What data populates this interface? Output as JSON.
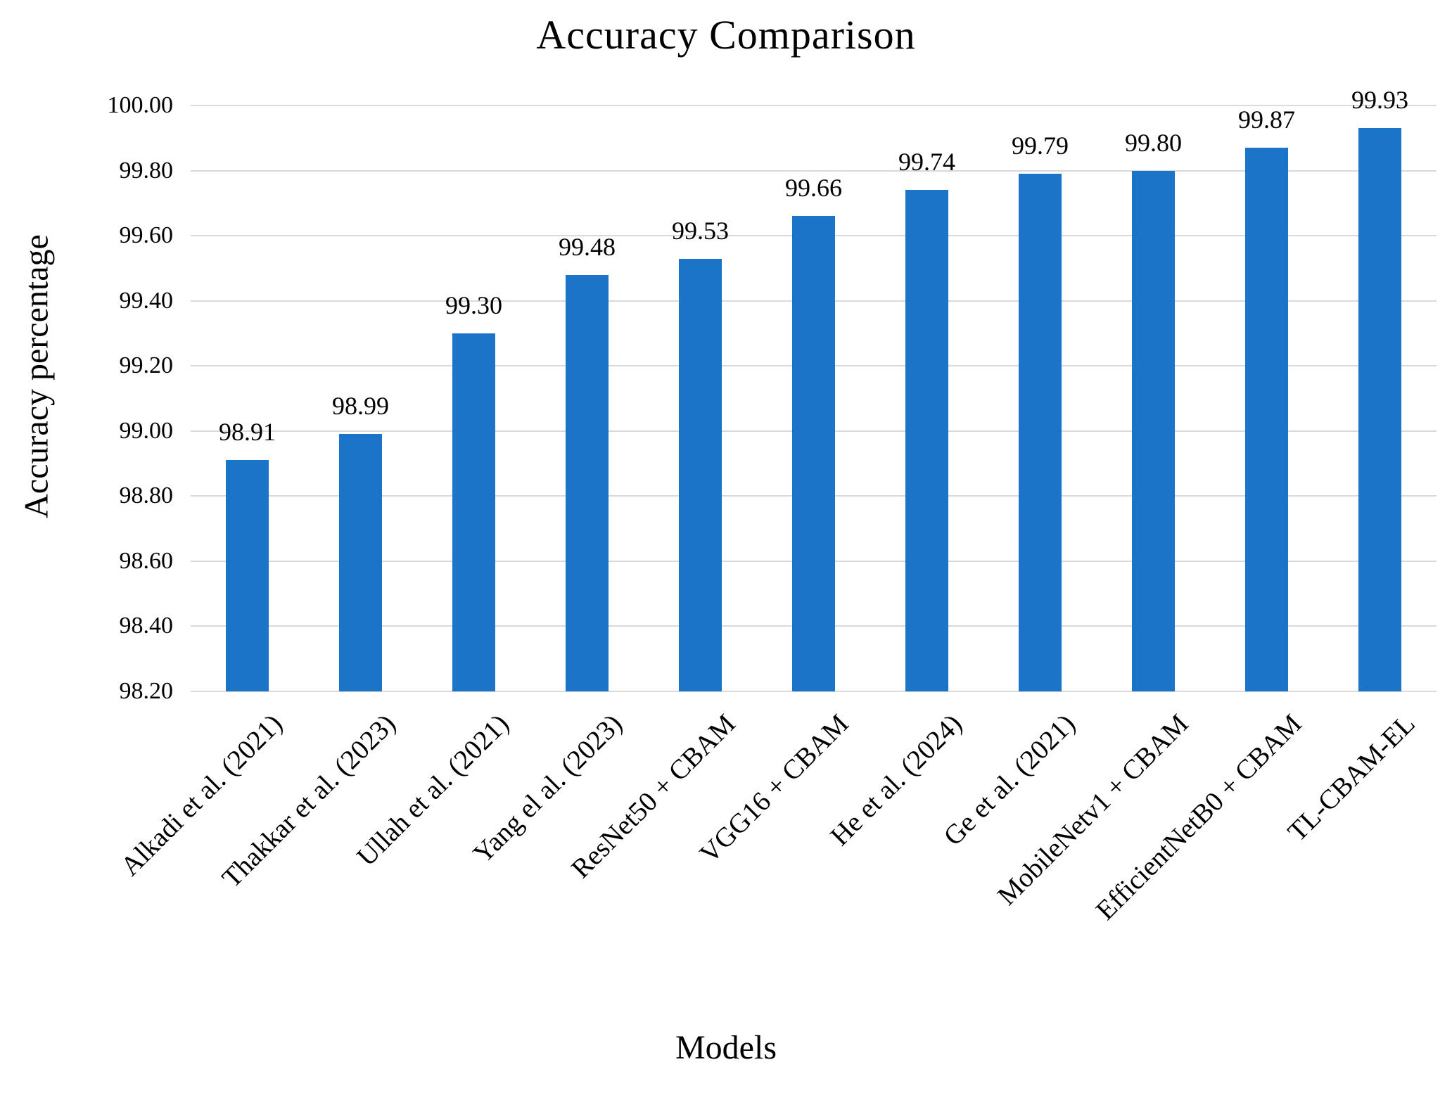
{
  "chart_data": {
    "type": "bar",
    "title": "Accuracy Comparison",
    "xlabel": "Models",
    "ylabel": "Accuracy percentage",
    "categories": [
      "Alkadi et al. (2021)",
      "Thakkar et al. (2023)",
      "Ullah et al. (2021)",
      "Yang el al. (2023)",
      "ResNet50 + CBAM",
      "VGG16 + CBAM",
      "He et al. (2024)",
      "Ge et al. (2021)",
      "MobileNetv1 + CBAM",
      "EfficientNetB0 + CBAM",
      "TL-CBAM-EL"
    ],
    "values": [
      98.91,
      98.99,
      99.3,
      99.48,
      99.53,
      99.66,
      99.74,
      99.79,
      99.8,
      99.87,
      99.93
    ],
    "data_labels": [
      "98.91",
      "98.99",
      "99.30",
      "99.48",
      "99.53",
      "99.66",
      "99.74",
      "99.79",
      "99.80",
      "99.87",
      "99.93"
    ],
    "ylim": [
      98.2,
      100.0
    ],
    "ytick_step": 0.2,
    "yticks": [
      "100.00",
      "99.80",
      "99.60",
      "99.40",
      "99.20",
      "99.00",
      "98.80",
      "98.60",
      "98.40",
      "98.20"
    ],
    "grid": true,
    "legend": "none",
    "colors": {
      "bar": "#1b74c8",
      "gridline": "#d9d9d9",
      "text": "#000000",
      "background": "#ffffff"
    }
  }
}
